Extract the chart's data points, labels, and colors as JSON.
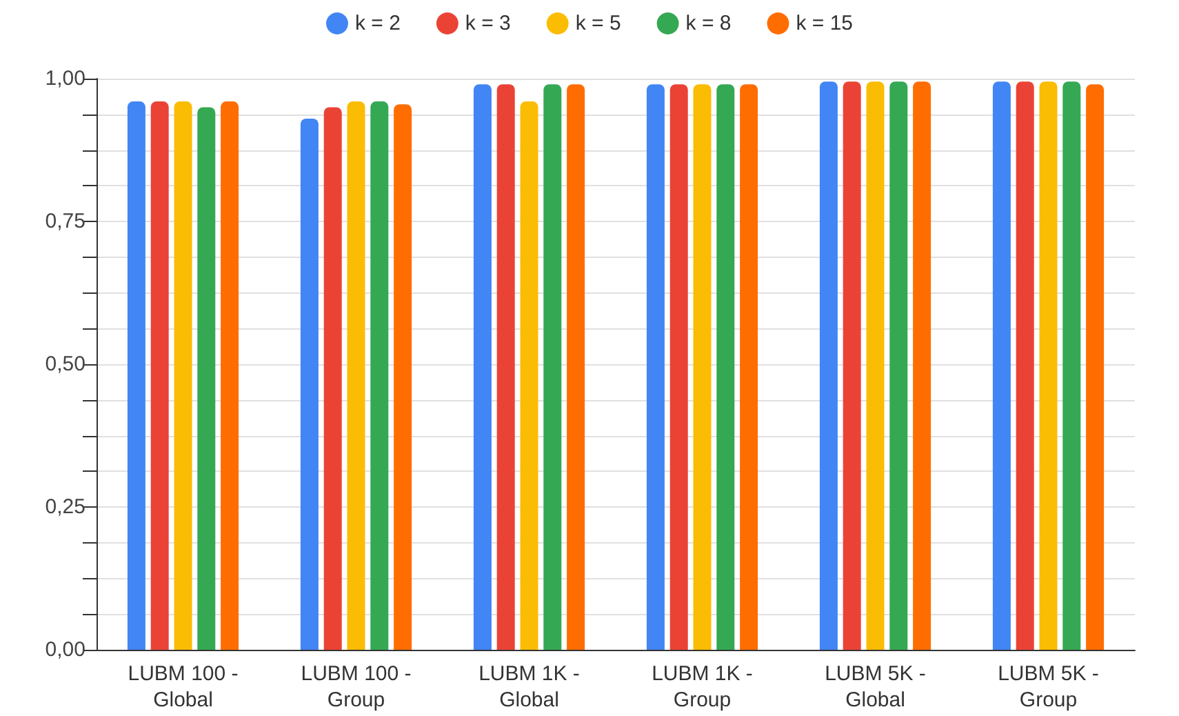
{
  "chart_data": {
    "type": "bar",
    "categories": [
      "LUBM 100 -\nGlobal",
      "LUBM 100 -\nGroup",
      "LUBM 1K -\nGlobal",
      "LUBM 1K -\nGroup",
      "LUBM 5K -\nGlobal",
      "LUBM 5K -\nGroup"
    ],
    "series": [
      {
        "name": "k = 2",
        "color": "#4285f4",
        "values": [
          0.96,
          0.93,
          0.99,
          0.99,
          0.995,
          0.995
        ]
      },
      {
        "name": "k = 3",
        "color": "#ea4335",
        "values": [
          0.96,
          0.95,
          0.99,
          0.99,
          0.995,
          0.995
        ]
      },
      {
        "name": "k = 5",
        "color": "#fbbc04",
        "values": [
          0.96,
          0.96,
          0.96,
          0.99,
          0.995,
          0.995
        ]
      },
      {
        "name": "k = 8",
        "color": "#34a853",
        "values": [
          0.95,
          0.96,
          0.99,
          0.99,
          0.995,
          0.995
        ]
      },
      {
        "name": "k = 15",
        "color": "#ff6d01",
        "values": [
          0.96,
          0.955,
          0.99,
          0.99,
          0.995,
          0.99
        ]
      }
    ],
    "ylim": [
      0,
      1
    ],
    "yticks": [
      {
        "value": 0,
        "label": "0,00"
      },
      {
        "value": 0.0625,
        "label": null
      },
      {
        "value": 0.125,
        "label": null
      },
      {
        "value": 0.1875,
        "label": null
      },
      {
        "value": 0.25,
        "label": "0,25"
      },
      {
        "value": 0.3125,
        "label": null
      },
      {
        "value": 0.375,
        "label": null
      },
      {
        "value": 0.4375,
        "label": null
      },
      {
        "value": 0.5,
        "label": "0,50"
      },
      {
        "value": 0.5625,
        "label": null
      },
      {
        "value": 0.625,
        "label": null
      },
      {
        "value": 0.6875,
        "label": null
      },
      {
        "value": 0.75,
        "label": "0,75"
      },
      {
        "value": 0.8125,
        "label": null
      },
      {
        "value": 0.875,
        "label": null
      },
      {
        "value": 0.9375,
        "label": null
      },
      {
        "value": 1,
        "label": "1,00"
      }
    ],
    "grid": true,
    "legend": "top"
  }
}
